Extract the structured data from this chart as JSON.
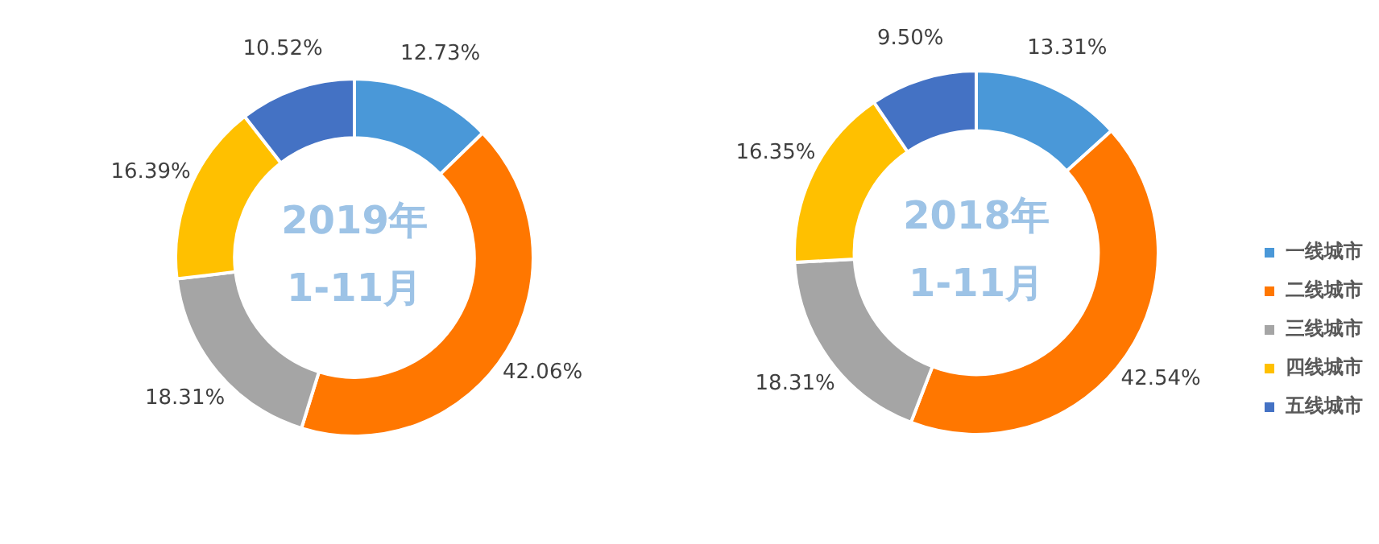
{
  "chart_data": [
    {
      "type": "donut",
      "title": "2019年\n1-11月",
      "categories": [
        null,
        null,
        null,
        null,
        null
      ],
      "values": [
        12.73,
        42.06,
        18.31,
        16.39,
        10.52
      ],
      "value_labels": [
        "12.73%",
        "42.06%",
        "18.31%",
        "16.39%",
        "10.52%"
      ],
      "colors": [
        "#4a98d8",
        "#ff7700",
        "#a5a5a5",
        "#ffc000",
        "#4472c4"
      ],
      "legend": false
    },
    {
      "type": "donut",
      "title": "2018年\n1-11月",
      "categories": [
        "一线城市",
        "二线城市",
        "三线城市",
        "四线城市",
        "五线城市"
      ],
      "values": [
        13.31,
        42.54,
        18.31,
        16.35,
        9.5
      ],
      "value_labels": [
        "13.31%",
        "42.54%",
        "18.31%",
        "16.35%",
        "9.50%"
      ],
      "colors": [
        "#4a98d8",
        "#ff7700",
        "#a5a5a5",
        "#ffc000",
        "#4472c4"
      ],
      "legend": "bottom right"
    }
  ]
}
